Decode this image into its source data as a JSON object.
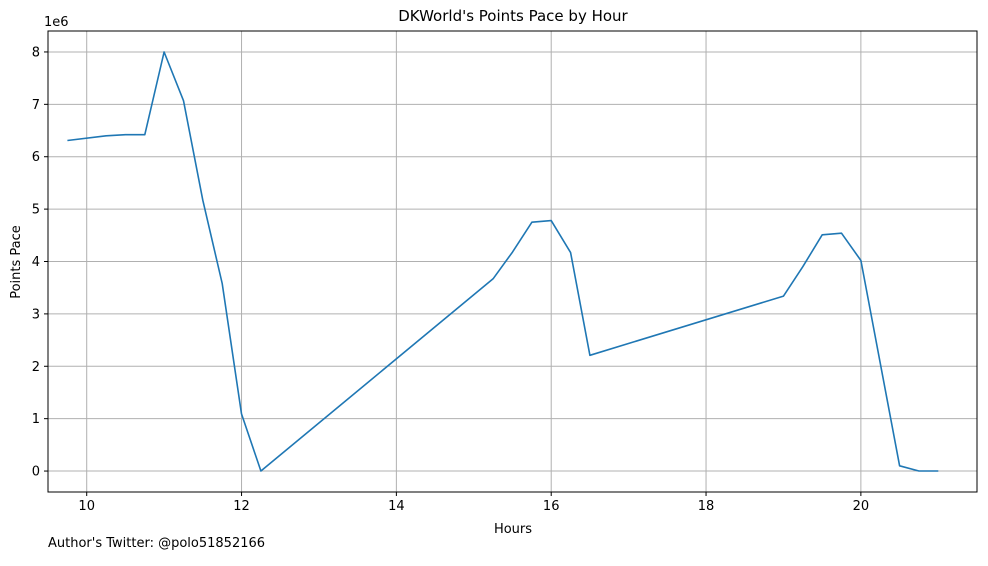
{
  "chart_data": {
    "type": "line",
    "title": "DKWorld's Points Pace by Hour",
    "xlabel": "Hours",
    "ylabel": "Points Pace",
    "y_scale_label": "1e6",
    "xlim": [
      9.5,
      21.5
    ],
    "ylim": [
      -0.4,
      8.4
    ],
    "x_ticks": [
      10,
      12,
      14,
      16,
      18,
      20
    ],
    "y_ticks": [
      0,
      1,
      2,
      3,
      4,
      5,
      6,
      7,
      8
    ],
    "grid": true,
    "series": [
      {
        "x": [
          9.75,
          10.25,
          10.5,
          10.75,
          11.0,
          11.25,
          11.5,
          11.75,
          12.0,
          12.25,
          15.25,
          15.5,
          15.75,
          16.0,
          16.25,
          16.5,
          19.0,
          19.25,
          19.5,
          19.75,
          20.0,
          20.5,
          20.75,
          21.0
        ],
        "y": [
          6.31,
          6.4,
          6.42,
          6.42,
          8.0,
          7.07,
          5.17,
          3.58,
          1.09,
          0.0,
          3.67,
          4.18,
          4.75,
          4.78,
          4.17,
          2.21,
          3.34,
          3.9,
          4.51,
          4.54,
          4.02,
          0.1,
          0.0,
          0.0
        ],
        "color": "#1f77b4"
      }
    ]
  },
  "footer": {
    "credit": "Author's Twitter: @polo51852166"
  }
}
